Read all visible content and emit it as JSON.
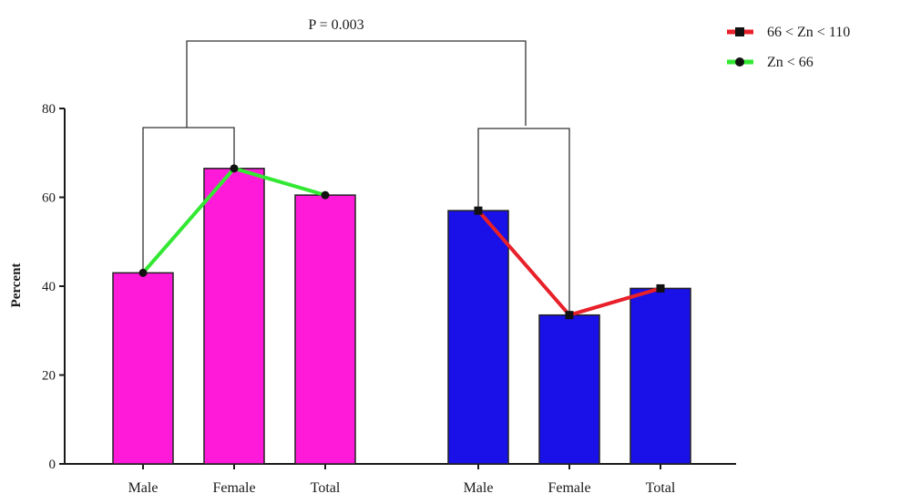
{
  "chart_data": {
    "type": "bar",
    "ylabel": "Percent",
    "ylim": [
      0,
      80
    ],
    "yticks": [
      0,
      20,
      40,
      60,
      80
    ],
    "groups": [
      {
        "name": "Zn < 66",
        "color": "#ff1ad9",
        "line_color": "#33e833",
        "marker": "circle",
        "categories": [
          "Male",
          "Female",
          "Total"
        ],
        "values": [
          43,
          66.5,
          60.5
        ]
      },
      {
        "name": "66 < Zn < 110",
        "color": "#1a10e8",
        "line_color": "#e8202a",
        "marker": "square",
        "categories": [
          "Male",
          "Female",
          "Total"
        ],
        "values": [
          57,
          33.5,
          39.5
        ]
      }
    ],
    "annotation": "P = 0.003",
    "legend": {
      "position": "top-right",
      "entries": [
        {
          "label": "66 < Zn < 110",
          "color": "#e8202a",
          "marker": "square"
        },
        {
          "label": "Zn < 66",
          "color": "#33e833",
          "marker": "circle"
        }
      ]
    }
  }
}
